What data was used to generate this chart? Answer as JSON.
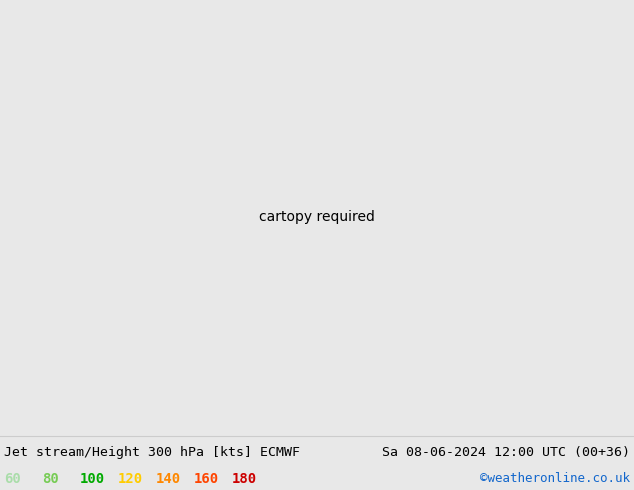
{
  "title_left": "Jet stream/Height 300 hPa [kts] ECMWF",
  "title_right": "Sa 08-06-2024 12:00 UTC (00+36)",
  "credit": "©weatheronline.co.uk",
  "legend_values": [
    60,
    80,
    100,
    120,
    140,
    160,
    180
  ],
  "legend_colors": [
    "#aaddaa",
    "#77cc55",
    "#00aa00",
    "#ffcc00",
    "#ff8800",
    "#ff4400",
    "#cc0000"
  ],
  "bg_color": "#e8e8e8",
  "land_color": "#d8d8d8",
  "sea_color": "#f0f0f0",
  "title_fontsize": 9.5,
  "legend_fontsize": 10,
  "credit_fontsize": 9,
  "fig_width": 6.34,
  "fig_height": 4.9,
  "extent": [
    -45,
    55,
    25,
    75
  ],
  "jet_colors": [
    "#c8eec8",
    "#a0dda0",
    "#55bb55",
    "#00aa00",
    "#005500"
  ],
  "contour_lw": 1.0
}
